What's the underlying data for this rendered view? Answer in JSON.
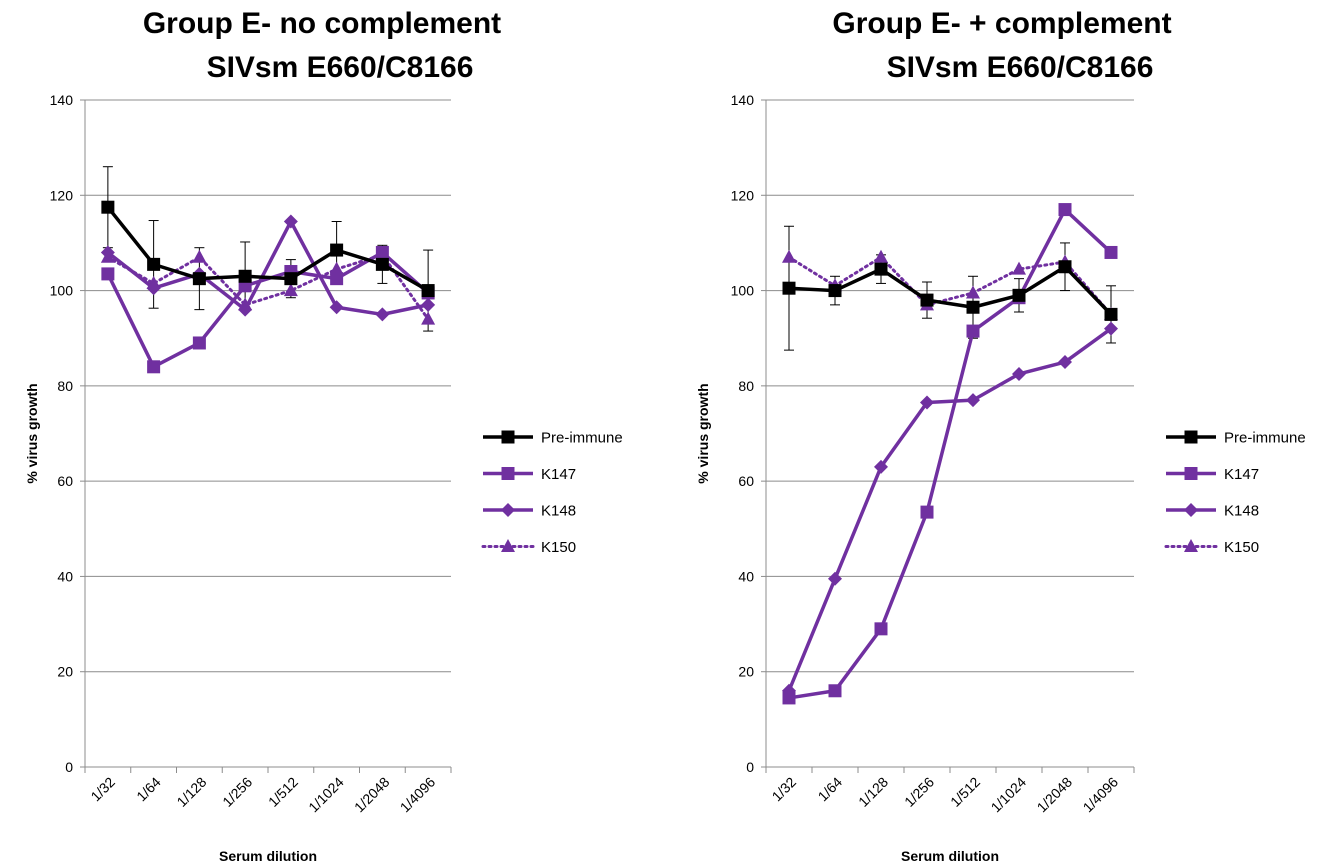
{
  "chart_data": [
    {
      "type": "line",
      "title": "Group E- no complement",
      "subtitle": "SIVsm E660/C8166",
      "xlabel": "Serum dilution",
      "ylabel": "% virus growth",
      "ylim": [
        0,
        140
      ],
      "yticks": [
        0,
        20,
        40,
        60,
        80,
        100,
        120,
        140
      ],
      "grid": true,
      "legend": "right",
      "categories": [
        "1/32",
        "1/64",
        "1/128",
        "1/256",
        "1/512",
        "1/1024",
        "1/2048",
        "1/4096"
      ],
      "series": [
        {
          "name": "Pre-immune",
          "color": "#000000",
          "marker": "square",
          "dash": "solid",
          "values": [
            117.5,
            105.5,
            102.5,
            103.0,
            102.5,
            108.5,
            105.5,
            100.0
          ],
          "error": [
            8.5,
            9.2,
            6.5,
            7.2,
            4.0,
            6.0,
            4.0,
            8.5
          ]
        },
        {
          "name": "K147",
          "color": "#7030A0",
          "marker": "square",
          "dash": "solid",
          "values": [
            103.5,
            84.0,
            89.0,
            101.0,
            104.0,
            102.5,
            108.0,
            99.5
          ]
        },
        {
          "name": "K148",
          "color": "#7030A0",
          "marker": "diamond",
          "dash": "solid",
          "values": [
            108.0,
            100.5,
            103.5,
            96.0,
            114.5,
            96.5,
            95.0,
            97.0
          ]
        },
        {
          "name": "K150",
          "color": "#7030A0",
          "marker": "triangle",
          "dash": "dotted",
          "values": [
            107.0,
            101.5,
            107.0,
            97.0,
            100.0,
            104.5,
            107.5,
            94.0
          ]
        }
      ]
    },
    {
      "type": "line",
      "title": "Group E- + complement",
      "subtitle": "SIVsm E660/C8166",
      "xlabel": "Serum dilution",
      "ylabel": "% virus growth",
      "ylim": [
        0,
        140
      ],
      "yticks": [
        0,
        20,
        40,
        60,
        80,
        100,
        120,
        140
      ],
      "grid": true,
      "legend": "right",
      "categories": [
        "1/32",
        "1/64",
        "1/128",
        "1/256",
        "1/512",
        "1/1024",
        "1/2048",
        "1/4096"
      ],
      "series": [
        {
          "name": "Pre-immune",
          "color": "#000000",
          "marker": "square",
          "dash": "solid",
          "values": [
            100.5,
            100.0,
            104.5,
            98.0,
            96.5,
            99.0,
            105.0,
            95.0
          ],
          "error": [
            13.0,
            3.0,
            3.0,
            3.8,
            6.5,
            3.5,
            5.0,
            6.0
          ]
        },
        {
          "name": "K147",
          "color": "#7030A0",
          "marker": "square",
          "dash": "solid",
          "values": [
            14.5,
            16.0,
            29.0,
            53.5,
            91.5,
            98.5,
            117.0,
            108.0
          ]
        },
        {
          "name": "K148",
          "color": "#7030A0",
          "marker": "diamond",
          "dash": "solid",
          "values": [
            16.0,
            39.5,
            63.0,
            76.5,
            77.0,
            82.5,
            85.0,
            92.0
          ]
        },
        {
          "name": "K150",
          "color": "#7030A0",
          "marker": "triangle",
          "dash": "dotted",
          "values": [
            107.0,
            101.0,
            107.0,
            97.0,
            99.5,
            104.5,
            106.0,
            95.0
          ]
        }
      ]
    }
  ]
}
